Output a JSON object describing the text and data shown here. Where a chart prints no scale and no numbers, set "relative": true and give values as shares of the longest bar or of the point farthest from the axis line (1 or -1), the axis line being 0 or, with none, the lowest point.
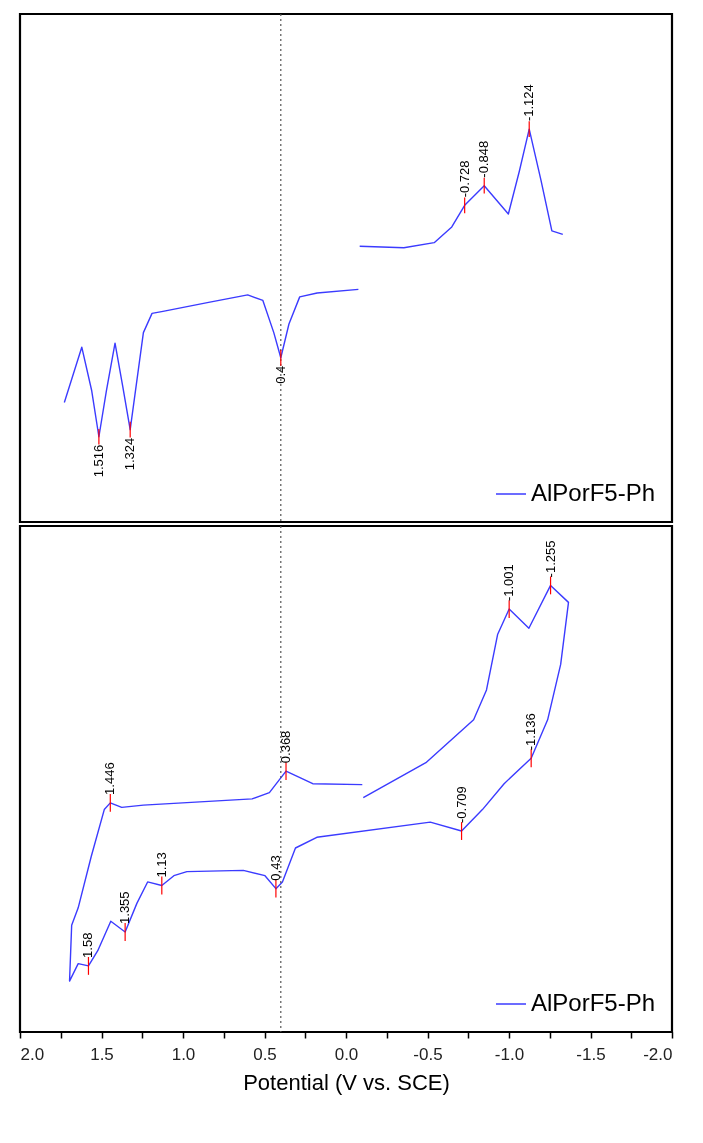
{
  "chart_data": [
    {
      "type": "line",
      "relative": true,
      "xlim": [
        2.0,
        -2.0
      ],
      "tick_labels": false,
      "legend": "bottom right",
      "series": [
        {
          "name": "AlPorF5-Ph",
          "color": "#3b3bff",
          "x": [
            1.728,
            1.621,
            1.56,
            1.516,
            1.47,
            1.417,
            1.37,
            1.324,
            1.243,
            1.19,
            1.123,
            0.843,
            0.603,
            0.51,
            0.443,
            0.4,
            0.35,
            0.284,
            0.177,
            -0.076,
            -0.08,
            -0.084,
            -0.355,
            -0.541,
            -0.649,
            -0.728,
            -0.848,
            -0.996,
            -1.063,
            -1.124,
            -1.196,
            -1.263,
            -1.33
          ],
          "values": [
            0.304,
            0.445,
            0.334,
            0.217,
            0.334,
            0.455,
            0.346,
            0.235,
            0.482,
            0.531,
            0.536,
            0.559,
            0.578,
            0.564,
            0.482,
            0.418,
            0.504,
            0.573,
            0.583,
            0.592,
            null,
            0.702,
            0.698,
            0.711,
            0.751,
            0.806,
            0.856,
            0.784,
            0.892,
            1,
            0.87,
            0.741,
            0.732
          ]
        }
      ],
      "ref_lines": [
        {
          "axis": "x",
          "value": 0.4,
          "line_style": "dotted",
          "color": "#555555"
        }
      ],
      "annotations": [
        {
          "text": "1.516",
          "x": 1.516,
          "y": 0.217
        },
        {
          "text": "1.324",
          "x": 1.324,
          "y": 0.235
        },
        {
          "text": "0.4",
          "x": 0.4,
          "y": 0.418
        },
        {
          "text": "-0.728",
          "x": -0.728,
          "y": 0.806
        },
        {
          "text": "-0.848",
          "x": -0.848,
          "y": 0.856
        },
        {
          "text": "-1.124",
          "x": -1.124,
          "y": 1
        }
      ]
    },
    {
      "type": "line",
      "relative": true,
      "xlim": [
        2.0,
        -2.0
      ],
      "tick_labels": "x",
      "legend": "bottom right",
      "xlabel": "Potential (V vs. SCE)",
      "xticks": [
        {
          "value": 2,
          "label": "2.0"
        },
        {
          "value": 1.75,
          "label": null
        },
        {
          "value": 1.5,
          "label": "1.5"
        },
        {
          "value": 1.25,
          "label": null
        },
        {
          "value": 1,
          "label": "1.0"
        },
        {
          "value": 0.75,
          "label": null
        },
        {
          "value": 0.5,
          "label": "0.5"
        },
        {
          "value": 0.25,
          "label": null
        },
        {
          "value": 0,
          "label": "0.0"
        },
        {
          "value": -0.25,
          "label": null
        },
        {
          "value": -0.5,
          "label": "-0.5"
        },
        {
          "value": -0.75,
          "label": null
        },
        {
          "value": -1,
          "label": "-1.0"
        },
        {
          "value": -1.25,
          "label": null
        },
        {
          "value": -1.5,
          "label": "-1.5"
        },
        {
          "value": -1.75,
          "label": null
        },
        {
          "value": -2,
          "label": "-2.0"
        }
      ],
      "series": [
        {
          "name": "AlPorF5-Ph",
          "color": "#3b3bff",
          "x": [
            -0.106,
            -0.49,
            -0.783,
            -0.862,
            -0.93,
            -1.001,
            -1.122,
            -1.255,
            -1.365,
            -1.317,
            -1.237,
            -1.136,
            -0.97,
            -0.837,
            -0.709,
            -0.517,
            0.179,
            0.31,
            0.39,
            0.43,
            0.497,
            0.63,
            0.976,
            1.056,
            1.13,
            1.217,
            1.283,
            1.355,
            1.443,
            1.523,
            1.58,
            1.643,
            1.696,
            1.683,
            1.643,
            1.563,
            1.483,
            1.446,
            1.376,
            1.243,
            0.576,
            0.47,
            0.368,
            0.204,
            -0.1
          ],
          "values": [
            0.525,
            0.603,
            0.699,
            0.766,
            0.89,
            0.947,
            0.904,
            1,
            0.962,
            0.823,
            0.699,
            0.613,
            0.556,
            0.498,
            0.45,
            0.47,
            0.436,
            0.412,
            0.336,
            0.321,
            0.35,
            0.362,
            0.359,
            0.35,
            0.328,
            0.336,
            0.288,
            0.224,
            0.248,
            0.182,
            0.148,
            0.153,
            0.114,
            0.239,
            0.278,
            0.393,
            0.498,
            0.513,
            0.503,
            0.508,
            0.522,
            0.536,
            0.584,
            0.556,
            0.554
          ]
        }
      ],
      "ref_lines": [
        {
          "axis": "x",
          "value": 0.4,
          "line_style": "dotted",
          "color": "#555555"
        }
      ],
      "annotations": [
        {
          "text": "1.58",
          "x": 1.58,
          "y": 0.148
        },
        {
          "text": "1.355",
          "x": 1.355,
          "y": 0.224
        },
        {
          "text": "1.13",
          "x": 1.13,
          "y": 0.328
        },
        {
          "text": "0.43",
          "x": 0.43,
          "y": 0.321
        },
        {
          "text": "1.446",
          "x": 1.446,
          "y": 0.513
        },
        {
          "text": "0.368",
          "x": 0.368,
          "y": 0.584
        },
        {
          "text": "-0.709",
          "x": -0.709,
          "y": 0.45
        },
        {
          "text": "-1.136",
          "x": -1.136,
          "y": 0.613
        },
        {
          "text": "-1.001",
          "x": -1.001,
          "y": 0.947
        },
        {
          "text": "-1.255",
          "x": -1.255,
          "y": 1
        }
      ]
    }
  ]
}
